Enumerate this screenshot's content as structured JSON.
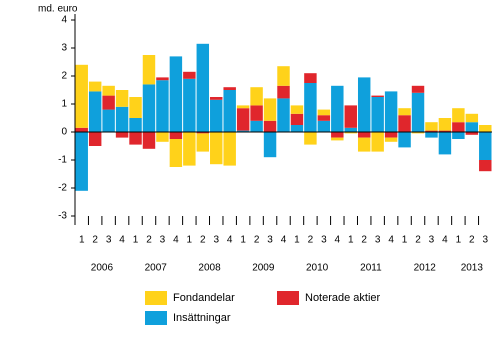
{
  "chart_data": {
    "type": "stacked-bar",
    "y_label": "md. euro",
    "categories": [
      "1",
      "2",
      "3",
      "4",
      "1",
      "2",
      "3",
      "4",
      "1",
      "2",
      "3",
      "4",
      "1",
      "2",
      "3",
      "4",
      "1",
      "2",
      "3",
      "4",
      "1",
      "2",
      "3",
      "4",
      "1",
      "2",
      "3",
      "4",
      "1",
      "2",
      "3"
    ],
    "years": [
      "2006",
      "2007",
      "2008",
      "2009",
      "2010",
      "2011",
      "2012",
      "2013"
    ],
    "series": [
      {
        "name": "Insättningar",
        "color": "#0fa0dc",
        "values": [
          -2.1,
          1.45,
          0.8,
          0.9,
          0.5,
          1.7,
          1.85,
          2.7,
          1.9,
          3.15,
          1.15,
          1.5,
          0.05,
          0.4,
          -0.9,
          1.2,
          0.25,
          1.75,
          0.4,
          1.65,
          0.15,
          1.95,
          1.25,
          1.45,
          -0.55,
          1.4,
          -0.2,
          -0.8,
          -0.25,
          0.35,
          -1.0
        ]
      },
      {
        "name": "Noterade aktier",
        "color": "#e0262c",
        "values": [
          0.15,
          -0.5,
          0.5,
          -0.2,
          -0.45,
          -0.6,
          0.1,
          -0.25,
          0.25,
          -0.05,
          0.1,
          0.1,
          0.8,
          0.55,
          0.4,
          0.45,
          0.4,
          0.35,
          0.2,
          -0.2,
          0.8,
          -0.2,
          0.05,
          -0.2,
          0.6,
          0.25,
          0.05,
          0.05,
          0.35,
          -0.1,
          -0.4
        ]
      },
      {
        "name": "Fondandelar",
        "color": "#ffd21a",
        "values": [
          2.25,
          0.35,
          0.35,
          0.6,
          0.75,
          1.05,
          -0.35,
          -1.0,
          -1.2,
          -0.65,
          -1.15,
          -1.2,
          0.1,
          0.65,
          0.8,
          0.7,
          0.3,
          -0.45,
          0.2,
          -0.1,
          -0.05,
          -0.5,
          -0.7,
          -0.15,
          0.25,
          -0.05,
          0.3,
          0.45,
          0.5,
          0.3,
          0.25
        ]
      }
    ],
    "ylim": [
      -3,
      4
    ],
    "yticks": [
      -3,
      -2,
      -1,
      0,
      1,
      2,
      3,
      4
    ]
  }
}
